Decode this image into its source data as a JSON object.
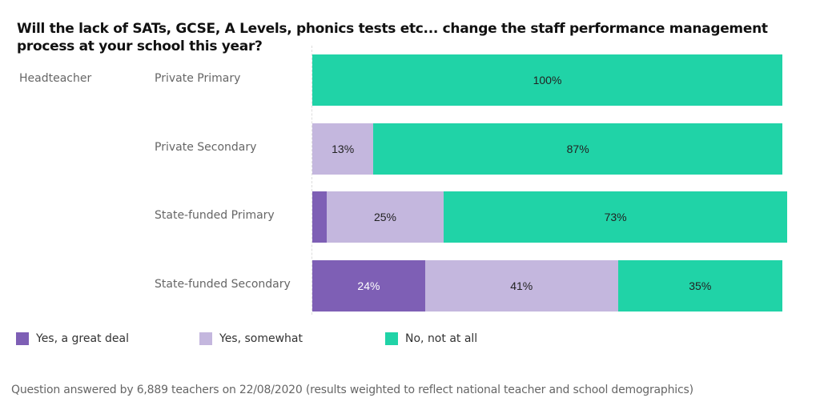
{
  "chart_data": {
    "type": "bar",
    "orientation": "horizontal",
    "stacked": true,
    "title": "Will the lack of SATs, GCSE, A Levels, phonics tests etc... change the staff performance management process at your school this year?",
    "group_label": "Headteacher",
    "categories": [
      "Private Primary",
      "Private Secondary",
      "State-funded Primary",
      "State-funded Secondary"
    ],
    "series": [
      {
        "name": "Yes, a great deal",
        "color": "#7e5fb5",
        "values": [
          0,
          0,
          3,
          24
        ],
        "labels": [
          "",
          "",
          "",
          "24%"
        ]
      },
      {
        "name": "Yes, somewhat",
        "color": "#c4b7de",
        "values": [
          0,
          13,
          25,
          41
        ],
        "labels": [
          "",
          "13%",
          "25%",
          "41%"
        ]
      },
      {
        "name": "No, not at all",
        "color": "#20d3a7",
        "values": [
          100,
          87,
          73,
          35
        ],
        "labels": [
          "100%",
          "87%",
          "73%",
          "35%"
        ]
      }
    ],
    "xlim": [
      0,
      100
    ],
    "grid": false,
    "legend_position": "bottom-left",
    "footnote": "Question answered by 6,889 teachers on 22/08/2020 (results weighted to reflect national teacher and school demographics)"
  }
}
